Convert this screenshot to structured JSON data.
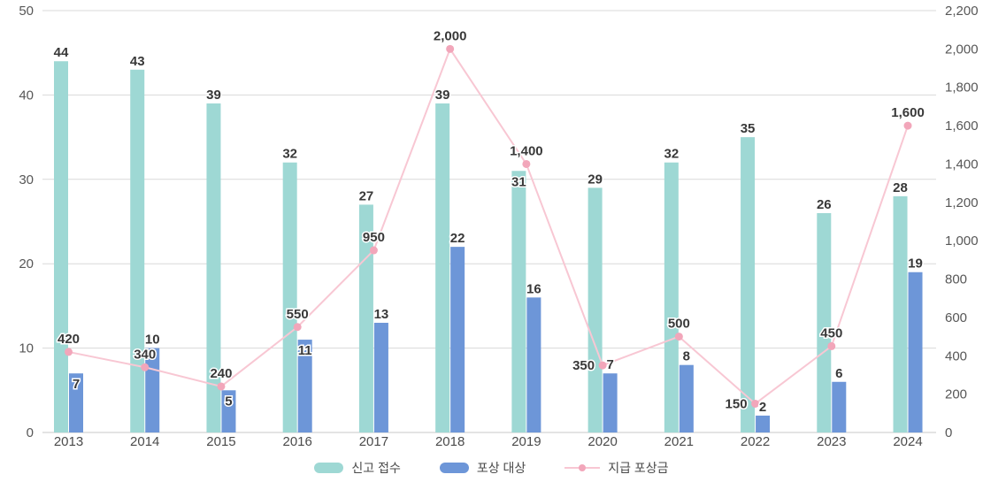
{
  "chart_data": {
    "type": "bar+line",
    "title": "",
    "categories": [
      "2013",
      "2014",
      "2015",
      "2016",
      "2017",
      "2018",
      "2019",
      "2020",
      "2021",
      "2022",
      "2023",
      "2024"
    ],
    "series": [
      {
        "id": "reports",
        "name": "신고 접수",
        "type": "bar",
        "axis": "left",
        "color": "#9ed8d4",
        "values": [
          44,
          43,
          39,
          32,
          27,
          39,
          31,
          29,
          32,
          35,
          26,
          28
        ],
        "labels": [
          "44",
          "43",
          "39",
          "32",
          "27",
          "39",
          "31",
          "29",
          "32",
          "35",
          "26",
          "28"
        ],
        "label_pos": [
          "above",
          "above",
          "above",
          "above",
          "above",
          "above",
          "inside",
          "above",
          "above",
          "above",
          "above",
          "above"
        ]
      },
      {
        "id": "reward-targets",
        "name": "포상 대상",
        "type": "bar",
        "axis": "left",
        "color": "#6d96d8",
        "values": [
          7,
          10,
          5,
          11,
          13,
          22,
          16,
          7,
          8,
          2,
          6,
          19
        ],
        "labels": [
          "7",
          "10",
          "5",
          "11",
          "13",
          "22",
          "16",
          "7",
          "8",
          "2",
          "6",
          "19"
        ],
        "label_pos": [
          "inside",
          "above",
          "inside",
          "inside",
          "above",
          "above",
          "above",
          "above",
          "above",
          "above",
          "above",
          "above"
        ]
      },
      {
        "id": "payout",
        "name": "지급 포상금",
        "type": "line",
        "axis": "right",
        "color": "#f8c7d3",
        "point_color": "#f2a6ba",
        "values": [
          420,
          340,
          240,
          550,
          950,
          2000,
          1400,
          350,
          500,
          150,
          450,
          1600
        ],
        "labels": [
          "420",
          "340",
          "240",
          "550",
          "950",
          "2,000",
          "1,400",
          "350",
          "500",
          "150",
          "450",
          "1,600"
        ],
        "label_pos": [
          "above",
          "above",
          "above",
          "above",
          "above",
          "above",
          "above",
          "left",
          "above",
          "left",
          "above",
          "above"
        ]
      }
    ],
    "left_axis": {
      "min": 0,
      "max": 50,
      "tick_labels": [
        "0",
        "10",
        "20",
        "30",
        "40",
        "50"
      ]
    },
    "right_axis": {
      "min": 0,
      "max": 2200,
      "tick_labels": [
        "0",
        "200",
        "400",
        "600",
        "800",
        "1,000",
        "1,200",
        "1,400",
        "1,600",
        "1,800",
        "2,000",
        "2,200"
      ]
    },
    "grid": true,
    "grid_color": "#d9d9d9",
    "axis_line_color": "#c8c8c8",
    "legend_position": "bottom",
    "background_color": "#ffffff"
  }
}
